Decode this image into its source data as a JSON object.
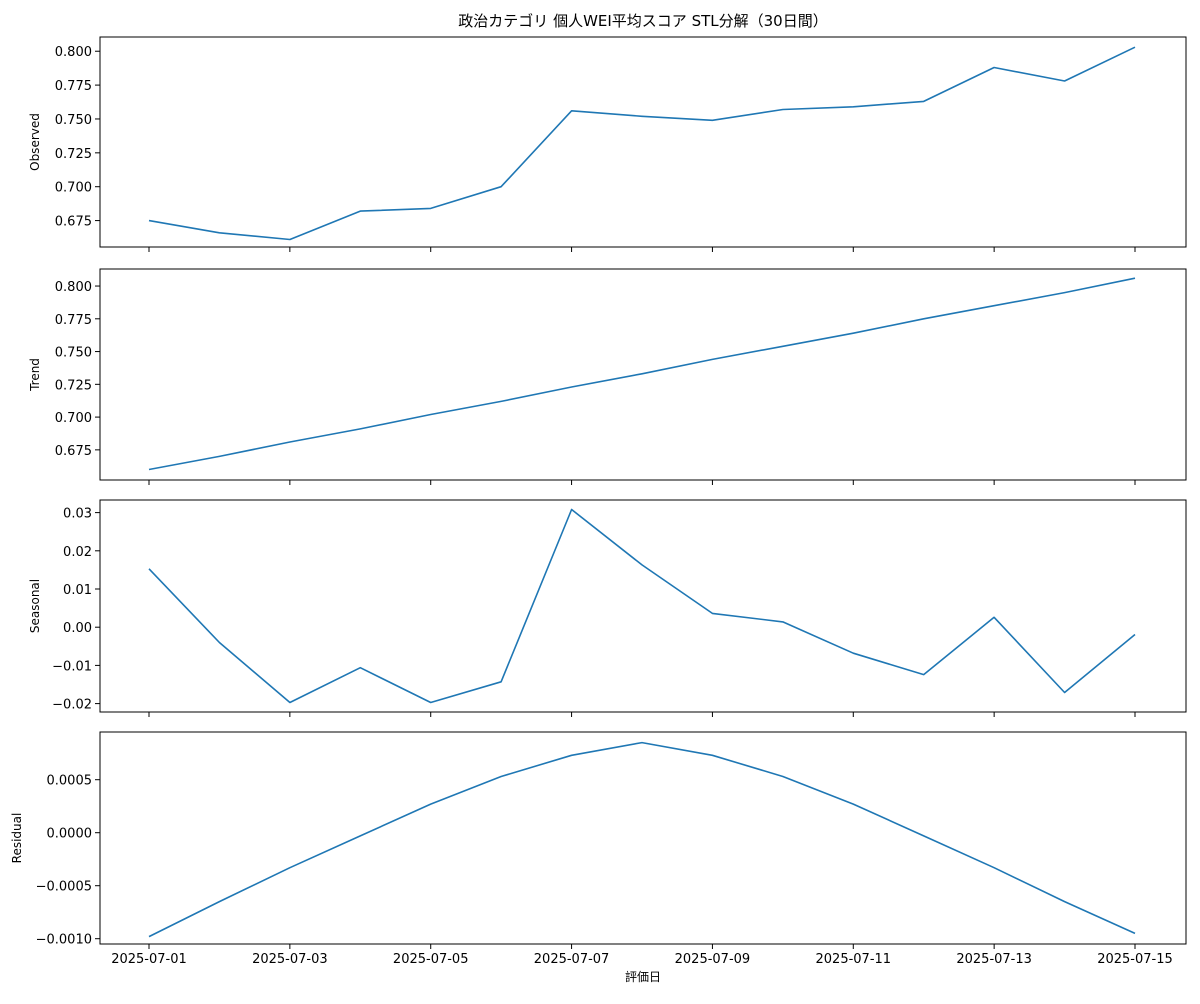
{
  "chart_data": {
    "type": "line",
    "title": "政治カテゴリ 個人WEI平均スコア STL分解（30日間）",
    "xlabel": "評価日",
    "x": [
      "2025-07-01",
      "2025-07-02",
      "2025-07-03",
      "2025-07-04",
      "2025-07-05",
      "2025-07-06",
      "2025-07-07",
      "2025-07-08",
      "2025-07-09",
      "2025-07-10",
      "2025-07-11",
      "2025-07-12",
      "2025-07-13",
      "2025-07-14",
      "2025-07-15"
    ],
    "x_tick_labels": [
      "2025-07-01",
      "2025-07-03",
      "2025-07-05",
      "2025-07-07",
      "2025-07-09",
      "2025-07-11",
      "2025-07-13",
      "2025-07-15"
    ],
    "line_color": "#1f77b4",
    "grid": false,
    "panels": [
      {
        "ylabel": "Observed",
        "ylim": [
          0.6555,
          0.8105
        ],
        "yticks": [
          0.675,
          0.7,
          0.725,
          0.75,
          0.775,
          0.8
        ],
        "ytick_labels": [
          "0.675",
          "0.700",
          "0.725",
          "0.750",
          "0.775",
          "0.800"
        ],
        "values": [
          0.675,
          0.666,
          0.661,
          0.682,
          0.684,
          0.7,
          0.756,
          0.752,
          0.749,
          0.757,
          0.759,
          0.763,
          0.788,
          0.778,
          0.803
        ]
      },
      {
        "ylabel": "Trend",
        "ylim": [
          0.652,
          0.813
        ],
        "yticks": [
          0.675,
          0.7,
          0.725,
          0.75,
          0.775,
          0.8
        ],
        "ytick_labels": [
          "0.675",
          "0.700",
          "0.725",
          "0.750",
          "0.775",
          "0.800"
        ],
        "values": [
          0.66,
          0.67,
          0.681,
          0.691,
          0.702,
          0.712,
          0.723,
          0.733,
          0.744,
          0.754,
          0.764,
          0.775,
          0.785,
          0.795,
          0.806
        ]
      },
      {
        "ylabel": "Seasonal",
        "ylim": [
          -0.0222,
          0.0333
        ],
        "yticks": [
          -0.02,
          -0.01,
          0.0,
          0.01,
          0.02,
          0.03
        ],
        "ytick_labels": [
          "−0.02",
          "−0.01",
          "0.00",
          "0.01",
          "0.02",
          "0.03"
        ],
        "values": [
          0.0153,
          -0.004,
          -0.0197,
          -0.0106,
          -0.0197,
          -0.0143,
          0.0308,
          0.0163,
          0.0036,
          0.0014,
          -0.0068,
          -0.0124,
          0.0026,
          -0.0171,
          -0.0019
        ]
      },
      {
        "ylabel": "Residual",
        "ylim": [
          -0.00105,
          0.00095
        ],
        "yticks": [
          -0.001,
          -0.0005,
          0.0,
          0.0005
        ],
        "ytick_labels": [
          "−0.0010",
          "−0.0005",
          "0.0000",
          "0.0005"
        ],
        "values": [
          -0.00098,
          -0.00065,
          -0.00033,
          -3e-05,
          0.00027,
          0.00053,
          0.00073,
          0.00085,
          0.00073,
          0.00053,
          0.00027,
          -3e-05,
          -0.00033,
          -0.00065,
          -0.00095
        ]
      }
    ]
  }
}
